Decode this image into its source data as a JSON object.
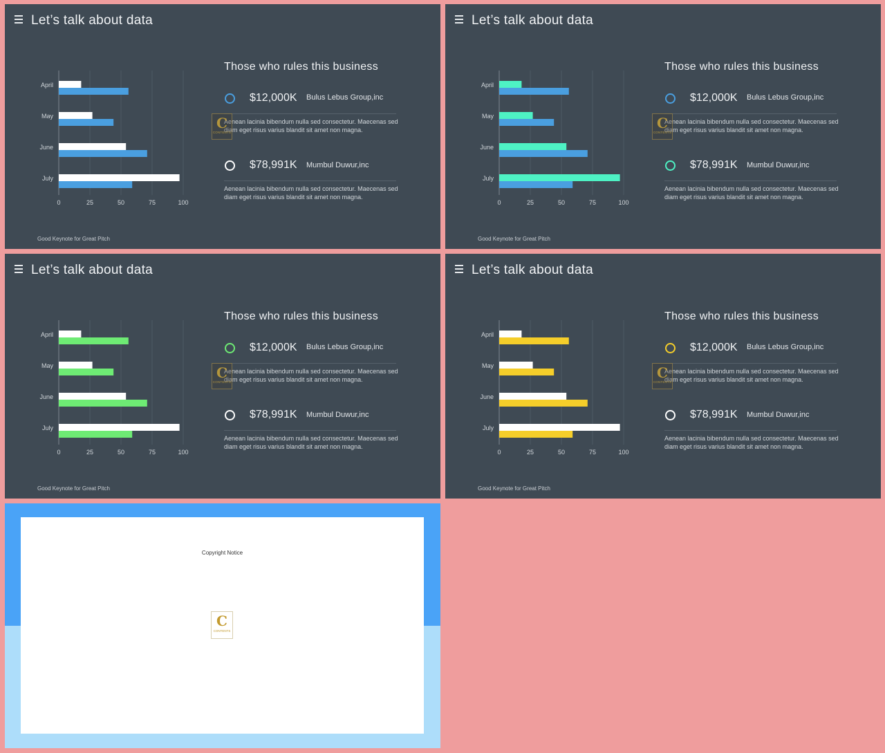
{
  "colors": {
    "page_background": "#EF9D9D",
    "slide_background": "#3F4A54",
    "bar_secondary": "#FFFFFF"
  },
  "slides": [
    {
      "title": "Let’s talk about data",
      "heading": "Those who rules this business",
      "accent": "#4A9FE0",
      "chart_data": {
        "type": "bar",
        "orientation": "horizontal",
        "categories": [
          "April",
          "May",
          "June",
          "July"
        ],
        "series": [
          {
            "values": [
              18,
              27,
              54,
              97
            ]
          },
          {
            "values": [
              56,
              44,
              71,
              59
            ]
          }
        ],
        "xlim": [
          0,
          100
        ],
        "xticks": [
          "0",
          "25",
          "50",
          "75",
          "100"
        ]
      },
      "entries": [
        {
          "value": "$12,000K",
          "company": "Bulus Lebus Group,inc",
          "description": "Aenean lacinia bibendum nulla sed consectetur. Maecenas sed diam eget risus varius blandit sit amet non magna.",
          "marker": "accent",
          "marker_icon": "circle-icon"
        },
        {
          "value": "$78,991K",
          "company": "Mumbul Duwur,inc",
          "description": "Aenean lacinia bibendum nulla sed consectetur. Maecenas sed diam eget risus varius blandit sit amet non magna.",
          "marker": "white",
          "marker_icon": "circle-icon"
        }
      ],
      "footer": "Good Keynote for Great Pitch"
    },
    {
      "title": "Let’s talk about data",
      "heading": "Those who rules this business",
      "accent": "#4A9FE0",
      "accent2": "#4EF2C4",
      "chart_data": {
        "type": "bar",
        "orientation": "horizontal",
        "categories": [
          "April",
          "May",
          "June",
          "July"
        ],
        "series": [
          {
            "values": [
              18,
              27,
              54,
              97
            ]
          },
          {
            "values": [
              56,
              44,
              71,
              59
            ]
          }
        ],
        "xlim": [
          0,
          100
        ],
        "xticks": [
          "0",
          "25",
          "50",
          "75",
          "100"
        ]
      },
      "entries": [
        {
          "value": "$12,000K",
          "company": "Bulus Lebus Group,inc",
          "description": "Aenean lacinia bibendum nulla sed consectetur. Maecenas sed diam eget risus varius blandit sit amet non magna.",
          "marker": "accent",
          "marker_icon": "circle-icon"
        },
        {
          "value": "$78,991K",
          "company": "Mumbul Duwur,inc",
          "description": "Aenean lacinia bibendum nulla sed consectetur. Maecenas sed diam eget risus varius blandit sit amet non magna.",
          "marker": "accent2",
          "marker_icon": "circle-icon"
        }
      ],
      "footer": "Good Keynote for Great Pitch"
    },
    {
      "title": "Let’s talk about data",
      "heading": "Those who rules this business",
      "accent": "#6EEB74",
      "chart_data": {
        "type": "bar",
        "orientation": "horizontal",
        "categories": [
          "April",
          "May",
          "June",
          "July"
        ],
        "series": [
          {
            "values": [
              18,
              27,
              54,
              97
            ]
          },
          {
            "values": [
              56,
              44,
              71,
              59
            ]
          }
        ],
        "xlim": [
          0,
          100
        ],
        "xticks": [
          "0",
          "25",
          "50",
          "75",
          "100"
        ]
      },
      "entries": [
        {
          "value": "$12,000K",
          "company": "Bulus Lebus Group,inc",
          "description": "Aenean lacinia bibendum nulla sed consectetur. Maecenas sed diam eget risus varius blandit sit amet non magna.",
          "marker": "accent",
          "marker_icon": "circle-icon"
        },
        {
          "value": "$78,991K",
          "company": "Mumbul Duwur,inc",
          "description": "Aenean lacinia bibendum nulla sed consectetur. Maecenas sed diam eget risus varius blandit sit amet non magna.",
          "marker": "white",
          "marker_icon": "circle-icon"
        }
      ],
      "footer": "Good Keynote for Great Pitch"
    },
    {
      "title": "Let’s talk about data",
      "heading": "Those who rules this business",
      "accent": "#F5CE2A",
      "chart_data": {
        "type": "bar",
        "orientation": "horizontal",
        "categories": [
          "April",
          "May",
          "June",
          "July"
        ],
        "series": [
          {
            "values": [
              18,
              27,
              54,
              97
            ]
          },
          {
            "values": [
              56,
              44,
              71,
              59
            ]
          }
        ],
        "xlim": [
          0,
          100
        ],
        "xticks": [
          "0",
          "25",
          "50",
          "75",
          "100"
        ]
      },
      "entries": [
        {
          "value": "$12,000K",
          "company": "Bulus Lebus Group,inc",
          "description": "Aenean lacinia bibendum nulla sed consectetur. Maecenas sed diam eget risus varius blandit sit amet non magna.",
          "marker": "accent",
          "marker_icon": "circle-icon"
        },
        {
          "value": "$78,991K",
          "company": "Mumbul Duwur,inc",
          "description": "Aenean lacinia bibendum nulla sed consectetur. Maecenas sed diam eget risus varius blandit sit amet non magna.",
          "marker": "white",
          "marker_icon": "circle-icon"
        }
      ],
      "footer": "Good Keynote for Great Pitch"
    }
  ],
  "copyright": {
    "title": "Copyright Notice",
    "colors": {
      "top": "#4AA3F7",
      "bottom": "#ADDDFA",
      "card": "#FFFFFF"
    }
  },
  "logo": {
    "letter": "C",
    "word": "CONTENTS",
    "icon": "logo-badge-icon"
  }
}
